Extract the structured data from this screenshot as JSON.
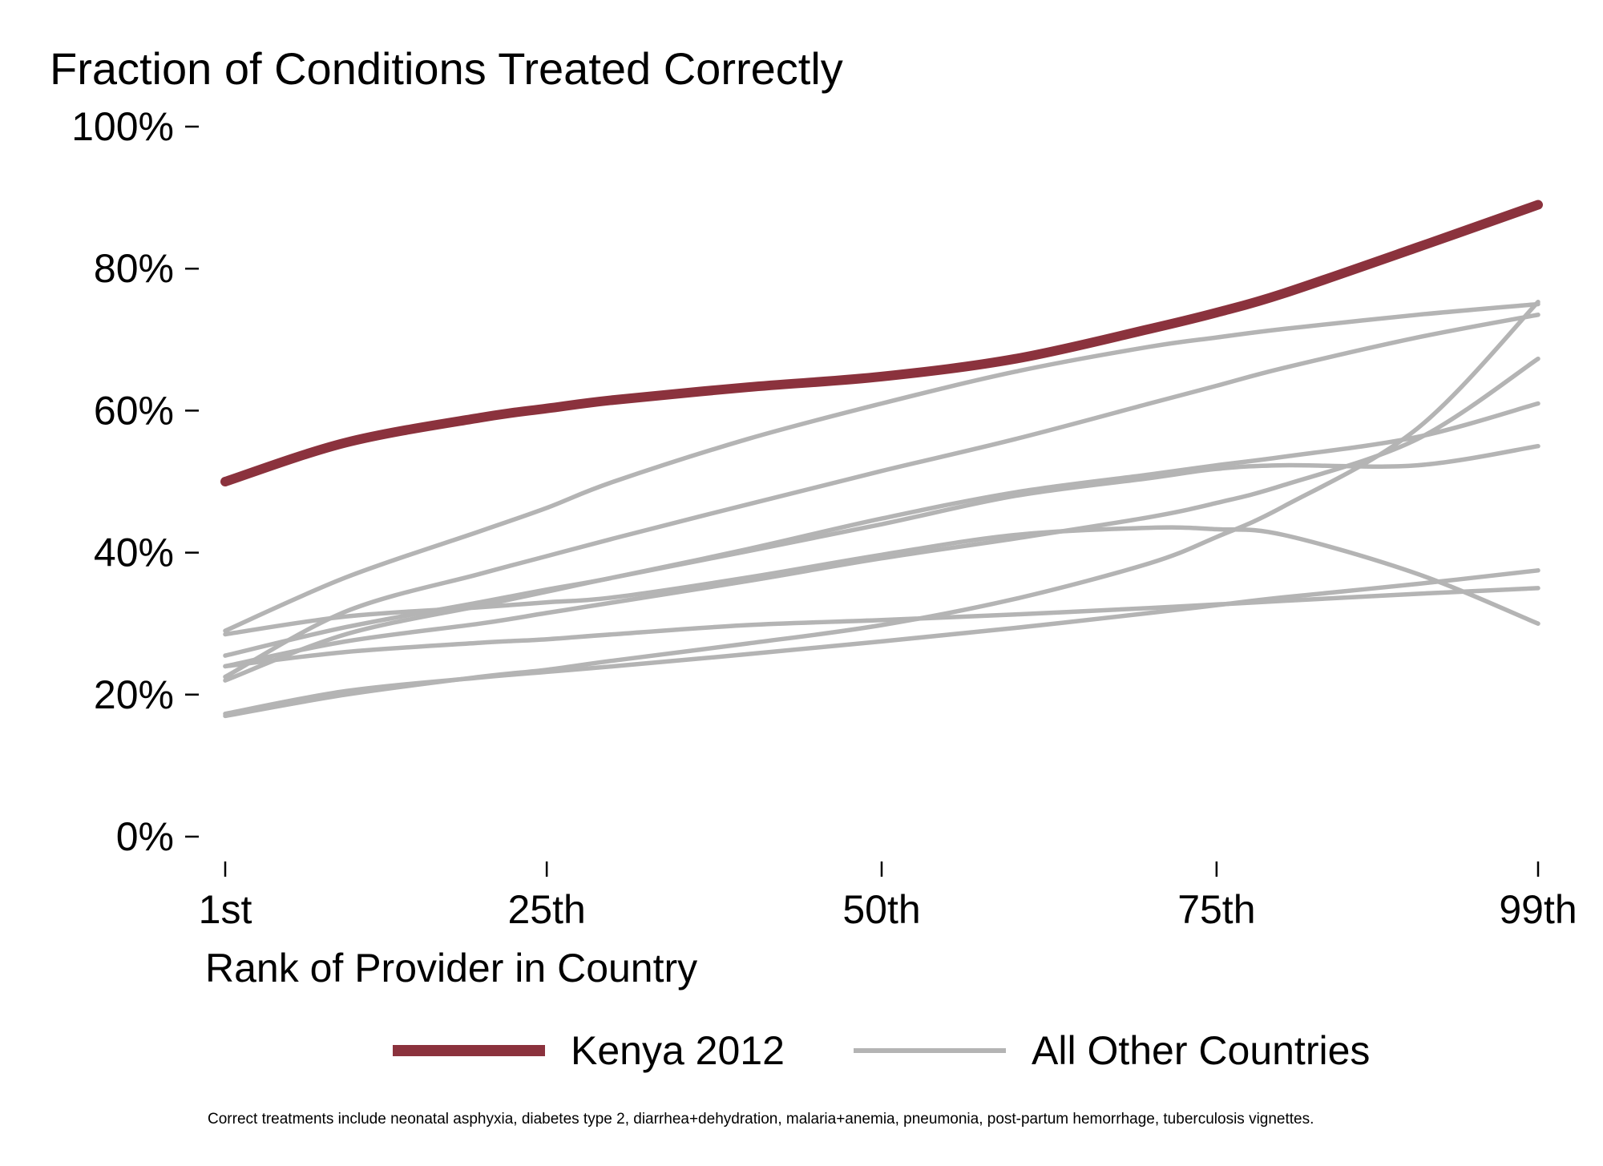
{
  "chart_data": {
    "type": "line",
    "title": "Fraction of Conditions Treated Correctly",
    "xlabel": "Rank of Provider in Country",
    "ylabel": "",
    "x_ticks": [
      {
        "value": 1,
        "label": "1st"
      },
      {
        "value": 25,
        "label": "25th"
      },
      {
        "value": 50,
        "label": "50th"
      },
      {
        "value": 75,
        "label": "75th"
      },
      {
        "value": 99,
        "label": "99th"
      }
    ],
    "y_ticks": [
      {
        "value": 0,
        "label": "0%"
      },
      {
        "value": 20,
        "label": "20%"
      },
      {
        "value": 40,
        "label": "40%"
      },
      {
        "value": 60,
        "label": "60%"
      },
      {
        "value": 80,
        "label": "80%"
      },
      {
        "value": 100,
        "label": "100%"
      }
    ],
    "xlim": [
      1,
      99
    ],
    "ylim": [
      0,
      100
    ],
    "grid": false,
    "legend_position": "bottom",
    "x": [
      1,
      10,
      20,
      25,
      30,
      40,
      50,
      60,
      70,
      75,
      80,
      90,
      99
    ],
    "series": [
      {
        "name": "Kenya 2012",
        "color": "#8b323d",
        "values": [
          50,
          55.5,
          59,
          60.3,
          61.5,
          63.3,
          64.8,
          67.3,
          71.5,
          73.8,
          76.5,
          83,
          89
        ]
      },
      {
        "name": "",
        "group": "All Other Countries",
        "color": "#b4b4b4",
        "values": [
          29,
          36.5,
          43,
          46.3,
          50,
          56,
          61,
          65.5,
          69,
          70.3,
          71.5,
          73.5,
          75
        ]
      },
      {
        "name": "",
        "group": "All Other Countries",
        "color": "#b4b4b4",
        "values": [
          22.5,
          31.7,
          37,
          39.5,
          42,
          46.8,
          51.5,
          56,
          61,
          63.5,
          66,
          70.3,
          73.5
        ]
      },
      {
        "name": "",
        "group": "All Other Countries",
        "color": "#b4b4b4",
        "values": [
          25.5,
          29.5,
          33,
          34.8,
          36.5,
          40.5,
          44.8,
          48.5,
          51,
          52.3,
          53.5,
          56.3,
          61
        ]
      },
      {
        "name": "",
        "group": "All Other Countries",
        "color": "#b4b4b4",
        "values": [
          22,
          28.5,
          32.5,
          34.5,
          36.5,
          40.2,
          44,
          48,
          50.5,
          51.8,
          52.3,
          52.3,
          55
        ]
      },
      {
        "name": "",
        "group": "All Other Countries",
        "color": "#b4b4b4",
        "values": [
          24,
          27.5,
          30,
          31.5,
          33,
          36,
          39.2,
          42,
          45,
          47,
          49.5,
          56,
          67.3
        ]
      },
      {
        "name": "",
        "group": "All Other Countries",
        "color": "#b4b4b4",
        "values": [
          28.5,
          31,
          32.3,
          33,
          33.7,
          36.5,
          39.7,
          42.5,
          43.5,
          43.3,
          42.5,
          37,
          30
        ]
      },
      {
        "name": "",
        "group": "All Other Countries",
        "color": "#b4b4b4",
        "values": [
          17,
          20,
          22.5,
          23.5,
          24.8,
          27.2,
          29.8,
          33.5,
          38.5,
          42.2,
          46.5,
          57.5,
          75.3
        ]
      },
      {
        "name": "",
        "group": "All Other Countries",
        "color": "#b4b4b4",
        "values": [
          24,
          26,
          27.3,
          27.8,
          28.5,
          29.8,
          30.5,
          31.3,
          32.2,
          32.7,
          33.2,
          34.2,
          35
        ]
      },
      {
        "name": "",
        "group": "All Other Countries",
        "color": "#b4b4b4",
        "values": [
          17.3,
          20.5,
          22.4,
          23.2,
          24,
          25.7,
          27.5,
          29.4,
          31.5,
          32.6,
          33.7,
          35.6,
          37.5
        ]
      }
    ],
    "legend": [
      {
        "label": "Kenya 2012",
        "color": "#8b323d"
      },
      {
        "label": "All Other Countries",
        "color": "#b4b4b4"
      }
    ],
    "note": "Correct treatments include neonatal asphyxia, diabetes type 2, diarrhea+dehydration, malaria+anemia, pneumonia, post-partum hemorrhage, tuberculosis vignettes."
  }
}
